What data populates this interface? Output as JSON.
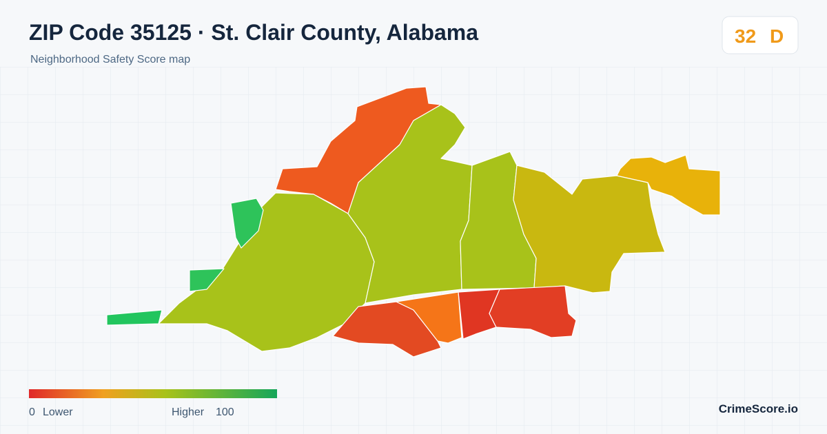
{
  "header": {
    "title": "ZIP Code 35125 · St. Clair County, Alabama",
    "subtitle": "Neighborhood Safety Score map"
  },
  "badge": {
    "score": "32",
    "grade": "D"
  },
  "legend": {
    "min": "0",
    "min_label": "Lower",
    "max_label": "Higher",
    "max": "100"
  },
  "brand": "CrimeScore.io"
}
